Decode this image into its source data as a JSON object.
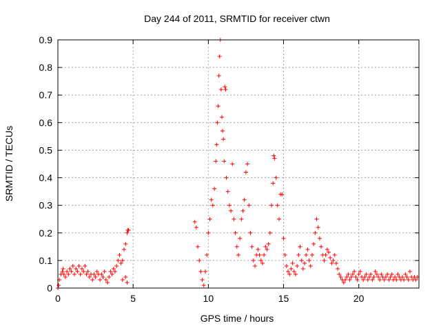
{
  "chart_data": {
    "type": "scatter",
    "title": "Day 244 of 2011, SRMTID for receiver ctwn",
    "xlabel": "GPS time / hours",
    "ylabel": "SRMTID / TECUs",
    "xlim": [
      0,
      24
    ],
    "ylim": [
      0,
      0.9
    ],
    "xticks": [
      0,
      5,
      10,
      15,
      20
    ],
    "xtick_labels": [
      "0",
      "5",
      "10",
      "15",
      "20"
    ],
    "yticks": [
      0,
      0.1,
      0.2,
      0.3,
      0.4,
      0.5,
      0.6,
      0.7,
      0.8,
      0.9
    ],
    "ytick_labels": [
      "0",
      "0.1",
      "0.2",
      "0.3",
      "0.4",
      "0.5",
      "0.6",
      "0.7",
      "0.8",
      "0.9"
    ],
    "grid": true,
    "marker": "+",
    "color": "#ff0000",
    "series": [
      {
        "name": "SRMTID",
        "points": [
          [
            0.0,
            0.0
          ],
          [
            0.05,
            0.01
          ],
          [
            0.1,
            0.03
          ],
          [
            0.2,
            0.05
          ],
          [
            0.3,
            0.06
          ],
          [
            0.35,
            0.07
          ],
          [
            0.4,
            0.05
          ],
          [
            0.5,
            0.04
          ],
          [
            0.6,
            0.06
          ],
          [
            0.7,
            0.05
          ],
          [
            0.8,
            0.07
          ],
          [
            0.9,
            0.06
          ],
          [
            1.0,
            0.08
          ],
          [
            1.1,
            0.05
          ],
          [
            1.2,
            0.07
          ],
          [
            1.3,
            0.06
          ],
          [
            1.4,
            0.08
          ],
          [
            1.5,
            0.05
          ],
          [
            1.6,
            0.07
          ],
          [
            1.7,
            0.06
          ],
          [
            1.8,
            0.08
          ],
          [
            1.9,
            0.05
          ],
          [
            2.0,
            0.06
          ],
          [
            2.1,
            0.04
          ],
          [
            2.2,
            0.05
          ],
          [
            2.3,
            0.03
          ],
          [
            2.4,
            0.05
          ],
          [
            2.5,
            0.04
          ],
          [
            2.6,
            0.06
          ],
          [
            2.7,
            0.05
          ],
          [
            2.8,
            0.03
          ],
          [
            2.9,
            0.05
          ],
          [
            3.0,
            0.04
          ],
          [
            3.1,
            0.06
          ],
          [
            3.2,
            0.03
          ],
          [
            3.3,
            0.02
          ],
          [
            3.4,
            0.04
          ],
          [
            3.5,
            0.06
          ],
          [
            3.6,
            0.05
          ],
          [
            3.7,
            0.07
          ],
          [
            3.8,
            0.06
          ],
          [
            3.9,
            0.08
          ],
          [
            4.0,
            0.1
          ],
          [
            4.1,
            0.12
          ],
          [
            4.2,
            0.09
          ],
          [
            4.3,
            0.1
          ],
          [
            4.4,
            0.14
          ],
          [
            4.5,
            0.16
          ],
          [
            4.6,
            0.2
          ],
          [
            4.65,
            0.21
          ],
          [
            4.7,
            0.21
          ],
          [
            4.6,
            0.02
          ],
          [
            4.5,
            0.04
          ],
          [
            4.3,
            0.03
          ],
          [
            9.1,
            0.24
          ],
          [
            9.2,
            0.22
          ],
          [
            9.3,
            0.15
          ],
          [
            9.4,
            0.1
          ],
          [
            9.5,
            0.06
          ],
          [
            9.6,
            0.03
          ],
          [
            9.7,
            0.01
          ],
          [
            9.8,
            0.06
          ],
          [
            9.9,
            0.12
          ],
          [
            10.0,
            0.2
          ],
          [
            10.1,
            0.25
          ],
          [
            10.2,
            0.32
          ],
          [
            10.3,
            0.3
          ],
          [
            10.4,
            0.36
          ],
          [
            10.5,
            0.46
          ],
          [
            10.55,
            0.52
          ],
          [
            10.6,
            0.6
          ],
          [
            10.65,
            0.66
          ],
          [
            10.7,
            0.77
          ],
          [
            10.75,
            0.84
          ],
          [
            10.8,
            0.9
          ],
          [
            10.85,
            0.72
          ],
          [
            10.9,
            0.62
          ],
          [
            10.95,
            0.57
          ],
          [
            11.0,
            0.54
          ],
          [
            11.05,
            0.46
          ],
          [
            11.1,
            0.73
          ],
          [
            11.15,
            0.72
          ],
          [
            11.2,
            0.4
          ],
          [
            11.3,
            0.35
          ],
          [
            11.4,
            0.3
          ],
          [
            11.5,
            0.28
          ],
          [
            11.6,
            0.45
          ],
          [
            11.7,
            0.25
          ],
          [
            11.8,
            0.2
          ],
          [
            11.9,
            0.15
          ],
          [
            12.0,
            0.12
          ],
          [
            12.1,
            0.18
          ],
          [
            12.2,
            0.25
          ],
          [
            12.3,
            0.28
          ],
          [
            12.4,
            0.32
          ],
          [
            12.5,
            0.42
          ],
          [
            12.6,
            0.45
          ],
          [
            12.7,
            0.3
          ],
          [
            12.8,
            0.2
          ],
          [
            12.9,
            0.15
          ],
          [
            13.0,
            0.1
          ],
          [
            13.1,
            0.08
          ],
          [
            13.2,
            0.12
          ],
          [
            13.3,
            0.14
          ],
          [
            13.4,
            0.12
          ],
          [
            13.5,
            0.1
          ],
          [
            13.6,
            0.09
          ],
          [
            13.7,
            0.12
          ],
          [
            13.8,
            0.15
          ],
          [
            13.9,
            0.14
          ],
          [
            14.0,
            0.16
          ],
          [
            14.1,
            0.2
          ],
          [
            14.2,
            0.3
          ],
          [
            14.3,
            0.38
          ],
          [
            14.35,
            0.48
          ],
          [
            14.4,
            0.47
          ],
          [
            14.5,
            0.4
          ],
          [
            14.6,
            0.3
          ],
          [
            14.7,
            0.25
          ],
          [
            14.8,
            0.34
          ],
          [
            14.9,
            0.34
          ],
          [
            15.0,
            0.18
          ],
          [
            15.1,
            0.12
          ],
          [
            15.2,
            0.08
          ],
          [
            15.3,
            0.06
          ],
          [
            15.4,
            0.05
          ],
          [
            15.5,
            0.07
          ],
          [
            15.6,
            0.09
          ],
          [
            15.7,
            0.06
          ],
          [
            15.8,
            0.05
          ],
          [
            15.9,
            0.08
          ],
          [
            16.0,
            0.12
          ],
          [
            16.1,
            0.15
          ],
          [
            16.2,
            0.1
          ],
          [
            16.3,
            0.07
          ],
          [
            16.4,
            0.09
          ],
          [
            16.5,
            0.12
          ],
          [
            16.6,
            0.14
          ],
          [
            16.7,
            0.1
          ],
          [
            16.8,
            0.08
          ],
          [
            16.9,
            0.12
          ],
          [
            17.0,
            0.16
          ],
          [
            17.1,
            0.2
          ],
          [
            17.2,
            0.25
          ],
          [
            17.3,
            0.22
          ],
          [
            17.4,
            0.18
          ],
          [
            17.5,
            0.15
          ],
          [
            17.6,
            0.12
          ],
          [
            17.7,
            0.1
          ],
          [
            17.8,
            0.12
          ],
          [
            17.9,
            0.14
          ],
          [
            18.0,
            0.13
          ],
          [
            18.1,
            0.11
          ],
          [
            18.2,
            0.09
          ],
          [
            18.3,
            0.1
          ],
          [
            18.4,
            0.12
          ],
          [
            18.5,
            0.09
          ],
          [
            18.6,
            0.07
          ],
          [
            18.7,
            0.05
          ],
          [
            18.8,
            0.04
          ],
          [
            18.9,
            0.03
          ],
          [
            19.0,
            0.02
          ],
          [
            19.1,
            0.03
          ],
          [
            19.2,
            0.04
          ],
          [
            19.3,
            0.05
          ],
          [
            19.4,
            0.03
          ],
          [
            19.5,
            0.04
          ],
          [
            19.6,
            0.05
          ],
          [
            19.7,
            0.06
          ],
          [
            19.8,
            0.04
          ],
          [
            19.9,
            0.03
          ],
          [
            20.0,
            0.05
          ],
          [
            20.1,
            0.06
          ],
          [
            20.2,
            0.04
          ],
          [
            20.3,
            0.03
          ],
          [
            20.4,
            0.04
          ],
          [
            20.5,
            0.05
          ],
          [
            20.6,
            0.03
          ],
          [
            20.7,
            0.04
          ],
          [
            20.8,
            0.05
          ],
          [
            20.9,
            0.03
          ],
          [
            21.0,
            0.04
          ],
          [
            21.1,
            0.06
          ],
          [
            21.2,
            0.05
          ],
          [
            21.3,
            0.04
          ],
          [
            21.4,
            0.03
          ],
          [
            21.5,
            0.05
          ],
          [
            21.6,
            0.04
          ],
          [
            21.7,
            0.03
          ],
          [
            21.8,
            0.04
          ],
          [
            21.9,
            0.05
          ],
          [
            22.0,
            0.03
          ],
          [
            22.1,
            0.04
          ],
          [
            22.2,
            0.05
          ],
          [
            22.3,
            0.03
          ],
          [
            22.4,
            0.04
          ],
          [
            22.5,
            0.03
          ],
          [
            22.6,
            0.05
          ],
          [
            22.7,
            0.04
          ],
          [
            22.8,
            0.03
          ],
          [
            22.9,
            0.04
          ],
          [
            23.0,
            0.03
          ],
          [
            23.1,
            0.05
          ],
          [
            23.2,
            0.04
          ],
          [
            23.3,
            0.03
          ],
          [
            23.4,
            0.06
          ],
          [
            23.5,
            0.04
          ],
          [
            23.6,
            0.03
          ],
          [
            23.7,
            0.04
          ],
          [
            23.8,
            0.03
          ],
          [
            23.9,
            0.04
          ]
        ]
      }
    ]
  }
}
